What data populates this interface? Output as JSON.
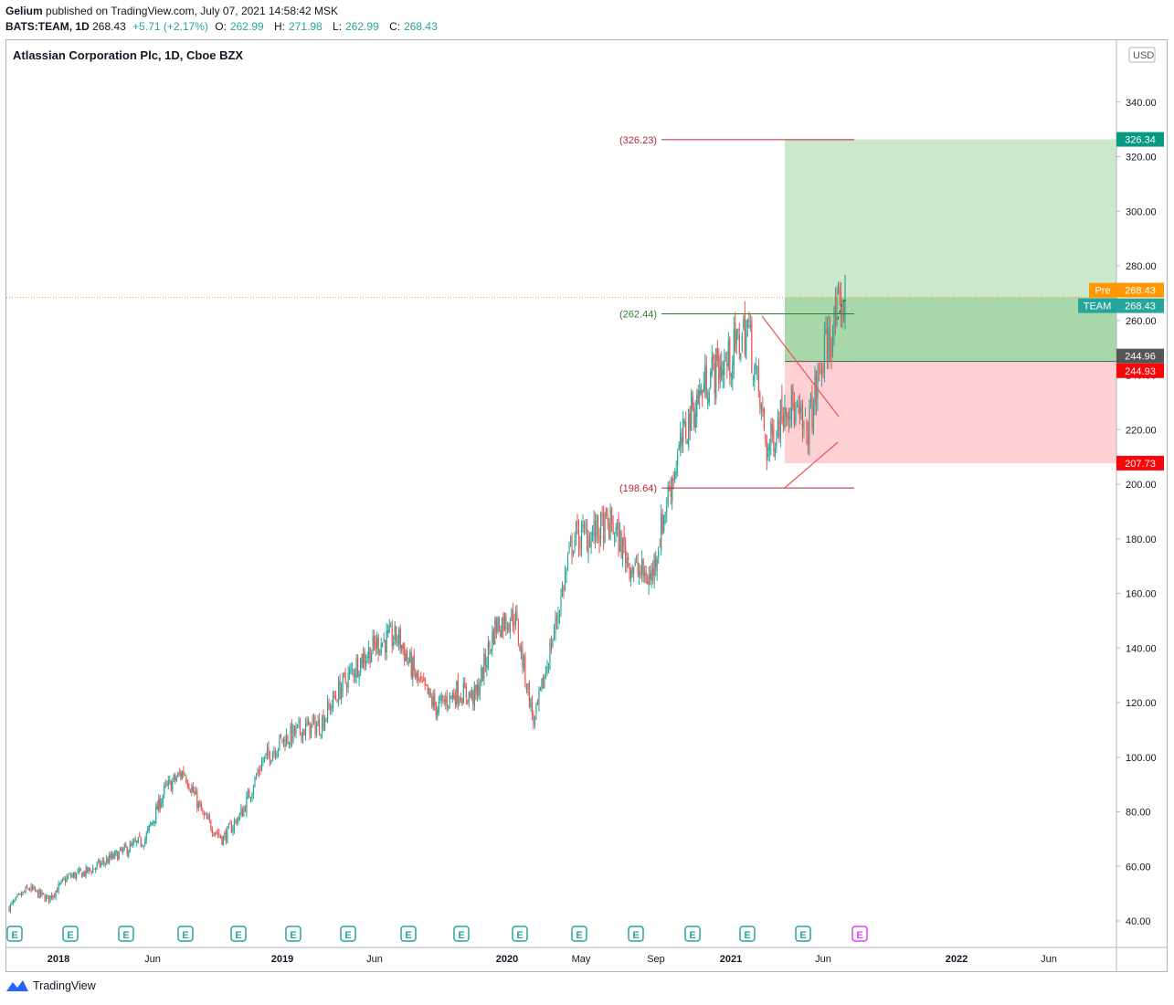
{
  "header": {
    "author": "Gelium",
    "published_text": "published on TradingView.com, July 07, 2021 14:58:42 MSK",
    "symbol": "BATS:TEAM, 1D",
    "last": "268.43",
    "change": "+5.71 (+2.17%)",
    "o_label": "O:",
    "o_value": "262.99",
    "h_label": "H:",
    "h_value": "271.98",
    "l_label": "L:",
    "l_value": "262.99",
    "c_label": "C:",
    "c_value": "268.43"
  },
  "chart_title": "Atlassian Corporation Plc, 1D, Cboe BZX",
  "footer": {
    "brand": "TradingView"
  },
  "colors": {
    "up": "#26a69a",
    "down": "#ef5350",
    "profit_zone": "#c8e6c9",
    "profit_zone_dark": "#a5d6a7",
    "loss_zone": "#ffcdd2",
    "target_badge": "#089981",
    "stop_badge": "#f7060a",
    "pre_badge": "#ff9800",
    "ticker_badge": "#26a69a",
    "entry_badge": "#555555",
    "level_red": "#b22833",
    "level_green": "#2e7d32"
  },
  "chart_data": {
    "type": "candlestick",
    "currency": "USD",
    "ylim": [
      30,
      360
    ],
    "y_ticks": [
      40,
      60,
      80,
      100,
      120,
      140,
      160,
      180,
      200,
      220,
      240,
      260,
      280,
      300,
      320,
      340
    ],
    "x_tick_labels": [
      "2018",
      "Jun",
      "2019",
      "Jun",
      "2020",
      "May",
      "Sep",
      "2021",
      "Jun",
      "2022",
      "Jun"
    ],
    "series": [
      {
        "name": "TEAM",
        "approx_close_path": [
          [
            "2017-12",
            45
          ],
          [
            "2018-01",
            52
          ],
          [
            "2018-02",
            48
          ],
          [
            "2018-03",
            56
          ],
          [
            "2018-04",
            58
          ],
          [
            "2018-05",
            62
          ],
          [
            "2018-06",
            66
          ],
          [
            "2018-07",
            70
          ],
          [
            "2018-08",
            88
          ],
          [
            "2018-09",
            95
          ],
          [
            "2018-10",
            78
          ],
          [
            "2018-11",
            70
          ],
          [
            "2018-12",
            80
          ],
          [
            "2019-01",
            98
          ],
          [
            "2019-02",
            106
          ],
          [
            "2019-03",
            110
          ],
          [
            "2019-04",
            112
          ],
          [
            "2019-05",
            125
          ],
          [
            "2019-06",
            135
          ],
          [
            "2019-07",
            142
          ],
          [
            "2019-08",
            144
          ],
          [
            "2019-09",
            128
          ],
          [
            "2019-10",
            118
          ],
          [
            "2019-11",
            124
          ],
          [
            "2019-12",
            122
          ],
          [
            "2020-01",
            148
          ],
          [
            "2020-02",
            152
          ],
          [
            "2020-03",
            112
          ],
          [
            "2020-04",
            145
          ],
          [
            "2020-05",
            180
          ],
          [
            "2020-06",
            182
          ],
          [
            "2020-07",
            185
          ],
          [
            "2020-08",
            170
          ],
          [
            "2020-09",
            165
          ],
          [
            "2020-10",
            200
          ],
          [
            "2020-11",
            225
          ],
          [
            "2020-12",
            240
          ],
          [
            "2021-01",
            245
          ],
          [
            "2021-02",
            258
          ],
          [
            "2021-03",
            212
          ],
          [
            "2021-04",
            232
          ],
          [
            "2021-05",
            218
          ],
          [
            "2021-06",
            250
          ],
          [
            "2021-07",
            268.43
          ]
        ]
      }
    ],
    "horizontal_levels": [
      {
        "label": "(326.23)",
        "value": 326.23
      },
      {
        "label": "(262.44)",
        "value": 262.44
      },
      {
        "label": "(198.64)",
        "value": 198.64
      }
    ],
    "position_tool": {
      "target": 326.34,
      "entry": 244.96,
      "stop": 207.73
    },
    "price_badges": [
      {
        "label": "326.34",
        "value": 326.34,
        "kind": "target"
      },
      {
        "label": "268.43",
        "prefix": "Pre",
        "value": 268.43,
        "kind": "pre"
      },
      {
        "label": "268.43",
        "prefix": "TEAM",
        "value": 268.43,
        "kind": "ticker"
      },
      {
        "label": "244.96",
        "value": 244.96,
        "kind": "entry"
      },
      {
        "label": "244.93",
        "value": 244.93,
        "kind": "stop_entry"
      },
      {
        "label": "207.73",
        "value": 207.73,
        "kind": "stop"
      }
    ],
    "earnings_markers": {
      "label": "E",
      "past_count": 16,
      "upcoming_count": 1
    },
    "last_price": 268.43
  }
}
